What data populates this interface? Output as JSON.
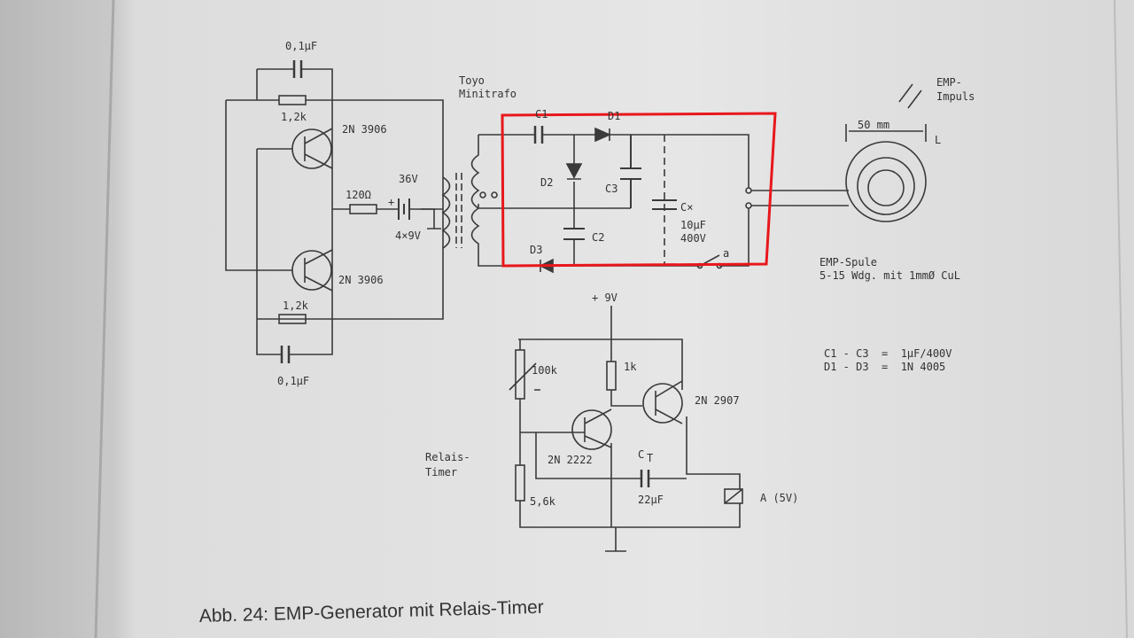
{
  "caption": "Abb. 24: EMP-Generator mit Relais-Timer",
  "labels": [
    "0,1µF",
    "1,2k",
    "2N 3906",
    "Toyo",
    "Minitrafo",
    "C1",
    "D1",
    "D2",
    "C3",
    "C×",
    "10µF",
    "400V",
    "C2",
    "D3",
    "a",
    "36V",
    "+",
    "120Ω",
    "4×9V",
    "2N 3906",
    "1,2k",
    "0,1µF",
    "EMP-",
    "Impuls",
    "50 mm",
    "L",
    "EMP-Spule",
    "5-15 Wdg. mit 1mmØ CuL",
    "+ 9V",
    "100k",
    "1k",
    "2N 2907",
    "2N 2222",
    "C",
    "T",
    "22µF",
    "A (5V)",
    "Relais-",
    "Timer",
    "5,6k",
    "C1 - C3  =  1µF/400V",
    "D1 - D3  =  1N 4005"
  ]
}
